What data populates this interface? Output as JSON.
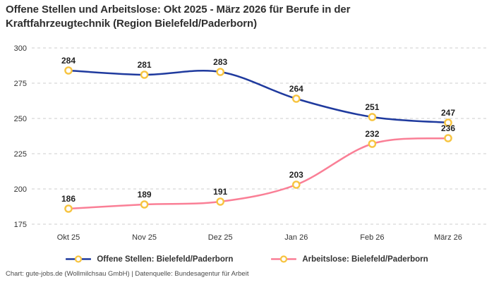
{
  "title": "Offene Stellen und Arbeitslose: Okt 2025 - März 2026 für Berufe in der Kraftfahrzeugtechnik (Region Bielefeld/Paderborn)",
  "footer": "Chart: gute-jobs.de (Wollmilchsau GmbH) | Datenquelle: Bundesagentur für Arbeit",
  "colors": {
    "grid": "#cccccc",
    "text": "#333333",
    "marker_fill": "#ffffff",
    "marker_stroke": "#f7c440"
  },
  "chart_data": {
    "type": "line",
    "categories": [
      "Okt 25",
      "Nov 25",
      "Dez 25",
      "Jan 26",
      "Feb 26",
      "März 26"
    ],
    "series": [
      {
        "name": "Offene Stellen: Bielefeld/Paderborn",
        "color": "#1f3a9e",
        "values": [
          284,
          281,
          283,
          264,
          251,
          247
        ]
      },
      {
        "name": "Arbeitslose: Bielefeld/Paderborn",
        "color": "#fa7f96",
        "values": [
          186,
          189,
          191,
          203,
          232,
          236
        ]
      }
    ],
    "ylim": [
      175,
      300
    ],
    "yticks": [
      175,
      200,
      225,
      250,
      275,
      300
    ],
    "grid": "dashed-horizontal",
    "legend_position": "bottom",
    "data_labels": true
  }
}
